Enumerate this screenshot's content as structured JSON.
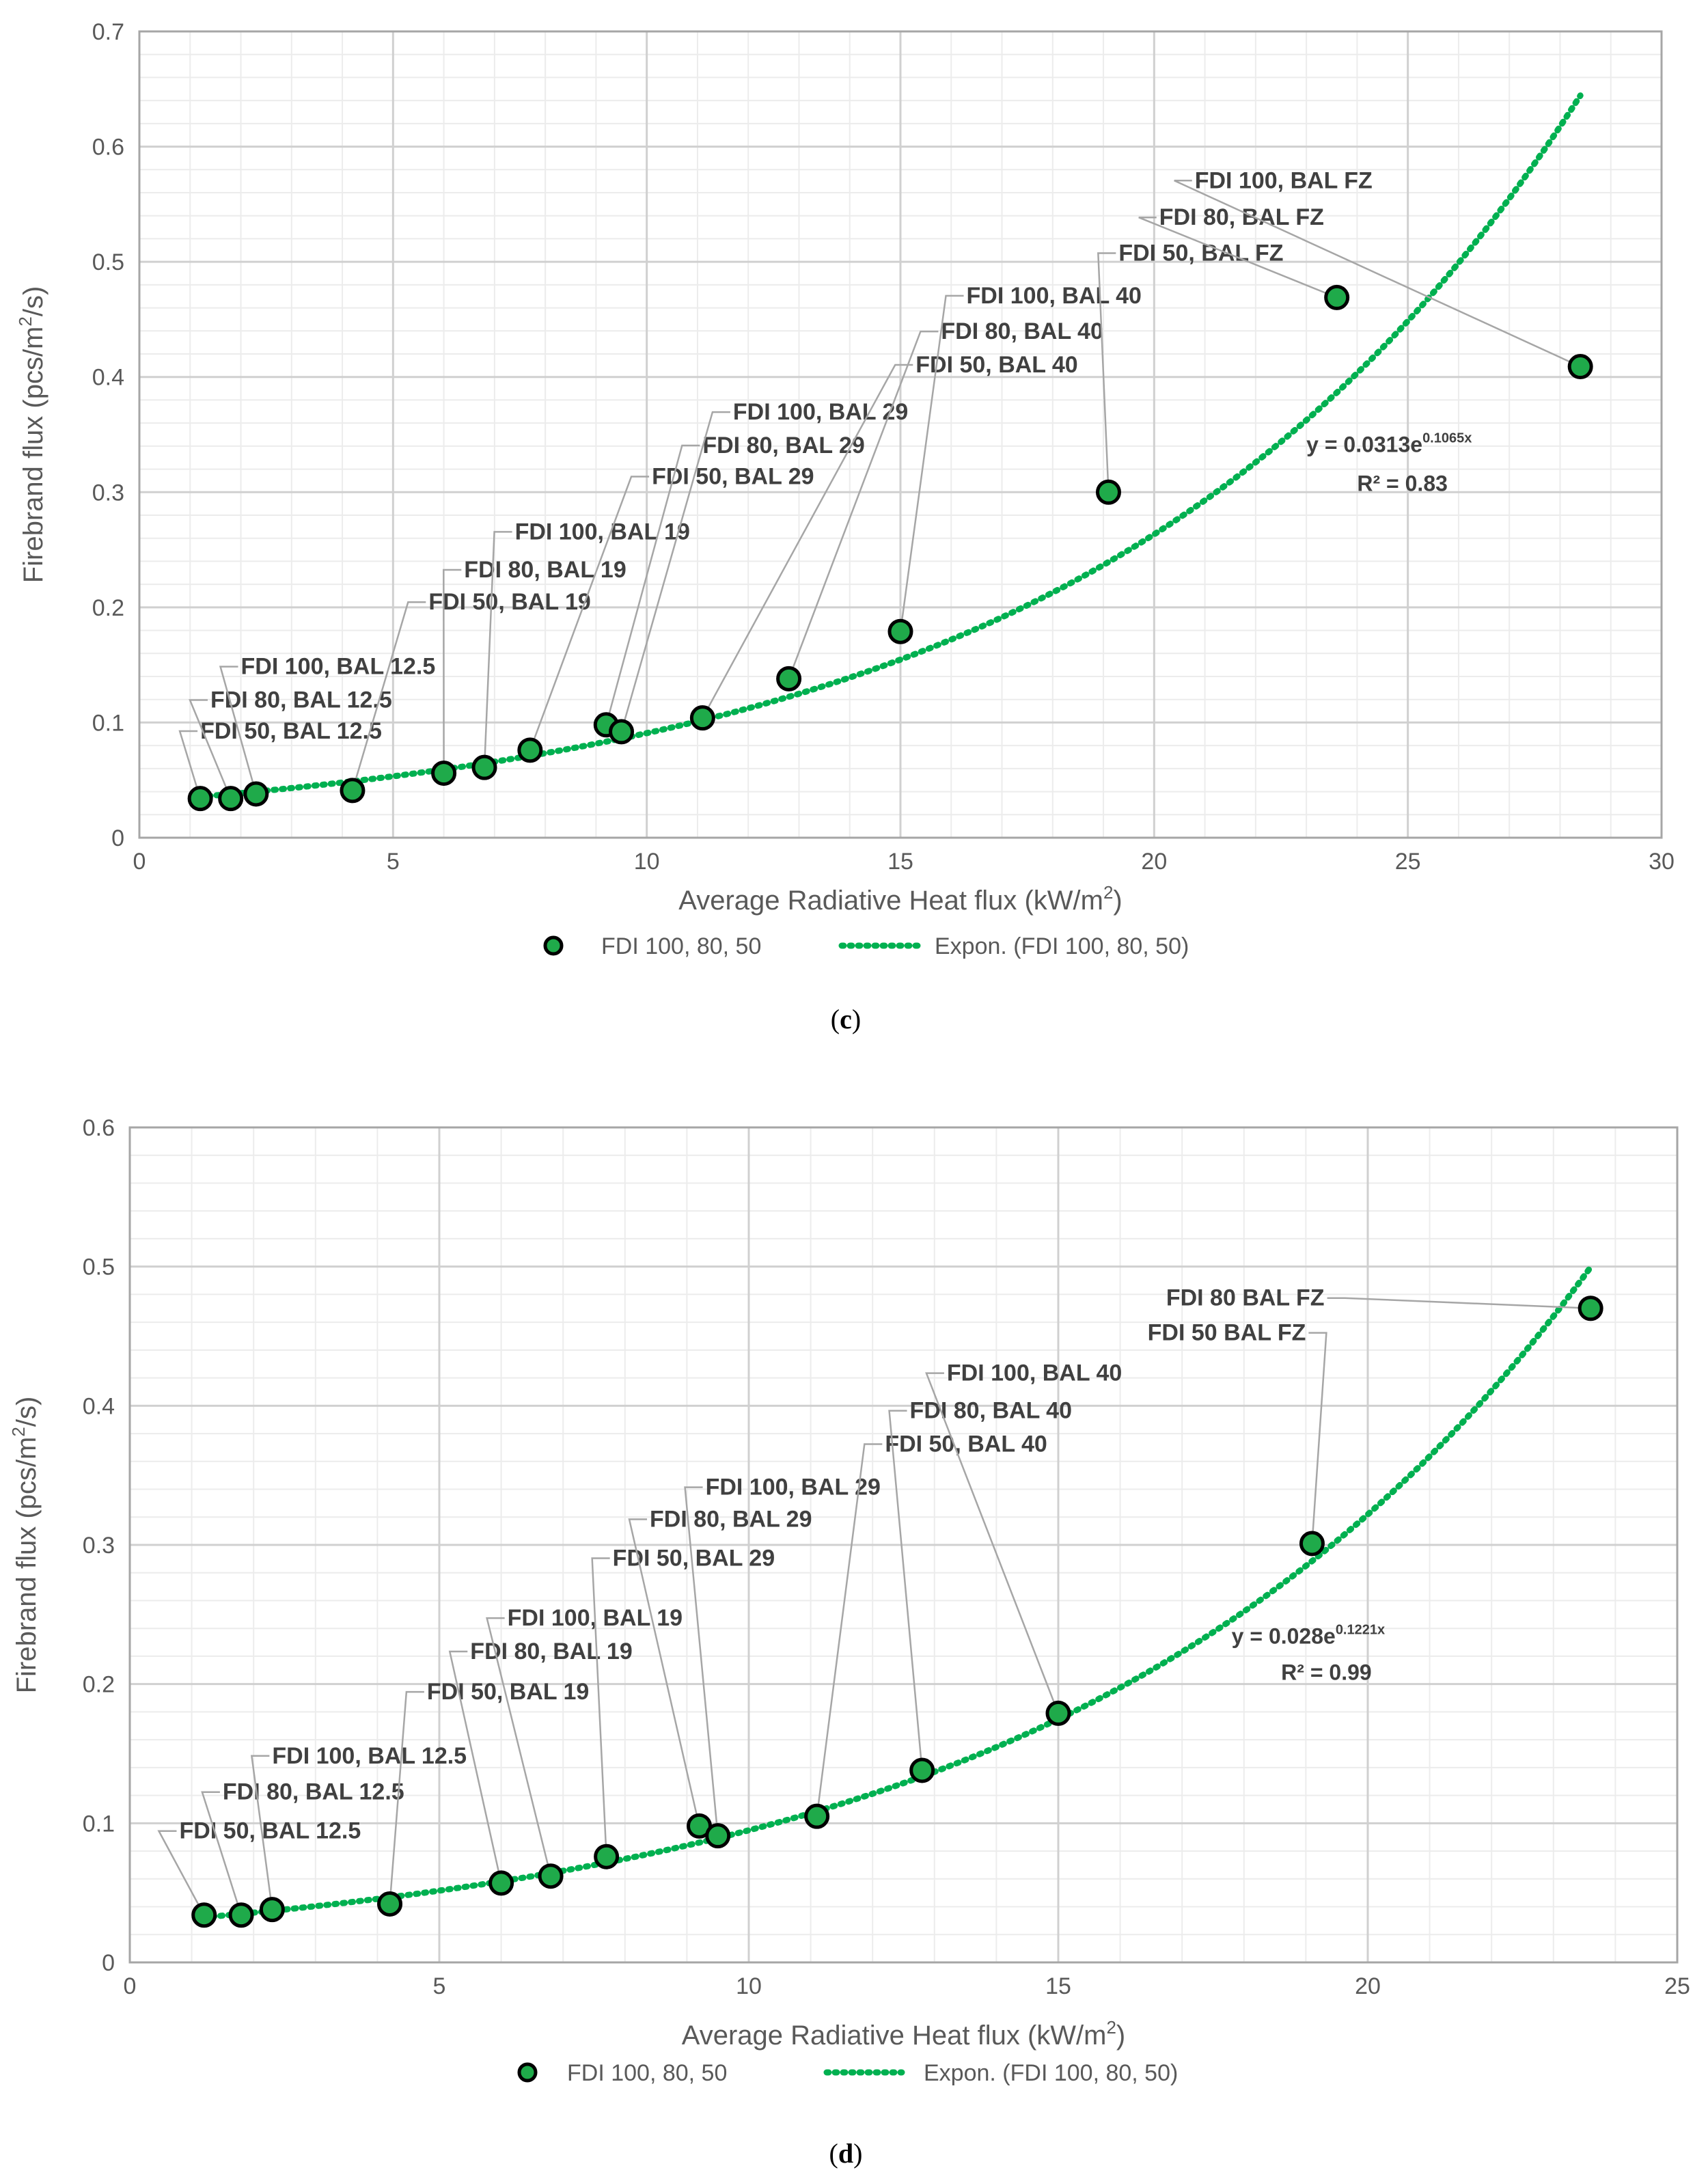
{
  "colors": {
    "marker_fill": "#1faa4a",
    "marker_stroke": "#000000",
    "trend": "#00b050",
    "grid_major": "#d0d0d0",
    "grid_minor": "#ececec",
    "axis": "#a6a6a6",
    "leader": "#a6a6a6"
  },
  "chart_data": [
    {
      "type": "scatter",
      "panel": "c",
      "caption": {
        "open": "(",
        "letter": "c",
        "close": ")"
      },
      "xlabel": {
        "main": "Average Radiative Heat flux (kW/m",
        "sup": "2",
        "tail": ")"
      },
      "ylabel": {
        "main": "Firebrand flux (pcs/m",
        "sup": "2",
        "tail": "/s)"
      },
      "xlim": [
        0,
        30
      ],
      "ylim": [
        0,
        0.7
      ],
      "xticks": [
        0,
        5,
        10,
        15,
        20,
        25,
        30
      ],
      "xtick_labels": [
        "0",
        "5",
        "10",
        "15",
        "20",
        "25",
        "30"
      ],
      "yticks": [
        0,
        0.1,
        0.2,
        0.3,
        0.4,
        0.5,
        0.6,
        0.7
      ],
      "ytick_labels": [
        "0",
        "0.1",
        "0.2",
        "0.3",
        "0.4",
        "0.5",
        "0.6",
        "0.7"
      ],
      "grid": true,
      "legend": {
        "position": "bottom",
        "series_label": "FDI 100, 80, 50",
        "trend_label": "Expon. (FDI 100, 80, 50)"
      },
      "series": [
        {
          "name": "FDI 100, 80, 50",
          "x": [
            1.2,
            1.8,
            2.3,
            4.2,
            6.0,
            6.8,
            7.7,
            9.2,
            9.5,
            11.1,
            12.8,
            15.0,
            19.1,
            23.6,
            28.4
          ],
          "y": [
            0.034,
            0.034,
            0.038,
            0.041,
            0.056,
            0.061,
            0.076,
            0.098,
            0.092,
            0.104,
            0.138,
            0.179,
            0.3,
            0.469,
            0.409
          ],
          "labels": [
            "FDI 50, BAL 12.5",
            "FDI 80, BAL 12.5",
            "FDI 100, BAL 12.5",
            "FDI 50, BAL 19",
            "FDI 80, BAL 19",
            "FDI 100, BAL 19",
            "FDI 50, BAL 29",
            "FDI 80, BAL 29",
            "FDI 100, BAL 29",
            "FDI 50, BAL 40",
            "FDI 80, BAL 40",
            "FDI 100, BAL 40",
            "FDI 50, BAL FZ",
            "FDI 80, BAL FZ",
            "FDI 100, BAL FZ"
          ],
          "label_pos": [
            [
              1.2,
              0.086
            ],
            [
              1.4,
              0.113
            ],
            [
              2.0,
              0.142
            ],
            [
              5.7,
              0.198
            ],
            [
              6.4,
              0.226
            ],
            [
              7.4,
              0.259
            ],
            [
              10.1,
              0.307
            ],
            [
              11.1,
              0.334
            ],
            [
              11.7,
              0.363
            ],
            [
              15.3,
              0.404
            ],
            [
              15.8,
              0.433
            ],
            [
              16.3,
              0.464
            ],
            [
              19.3,
              0.501
            ],
            [
              20.1,
              0.532
            ],
            [
              20.8,
              0.564
            ]
          ],
          "label_anchor": [
            "start",
            "start",
            "start",
            "start",
            "start",
            "start",
            "start",
            "start",
            "start",
            "start",
            "start",
            "start",
            "start",
            "start",
            "start"
          ]
        }
      ],
      "trendline": {
        "type": "exponential",
        "a": 0.0313,
        "b": 0.1065,
        "x_from": 1.2,
        "x_to": 28.4
      },
      "equation": {
        "text": "y = 0.0313e",
        "exponent": "0.1065x",
        "r2": "R² = 0.83",
        "pos": [
          23.0,
          0.335
        ],
        "r2_pos": [
          24.0,
          0.301
        ]
      }
    },
    {
      "type": "scatter",
      "panel": "d",
      "caption": {
        "open": "(",
        "letter": "d",
        "close": ")"
      },
      "xlabel": {
        "main": "Average Radiative Heat flux (kW/m",
        "sup": "2",
        "tail": ")"
      },
      "ylabel": {
        "main": "Firebrand flux (pcs/m",
        "sup": "2",
        "tail": "/s)"
      },
      "xlim": [
        0,
        25
      ],
      "ylim": [
        0,
        0.6
      ],
      "xticks": [
        0,
        5,
        10,
        15,
        20,
        25
      ],
      "xtick_labels": [
        "0",
        "5",
        "10",
        "15",
        "20",
        "25"
      ],
      "yticks": [
        0,
        0.1,
        0.2,
        0.3,
        0.4,
        0.5,
        0.6
      ],
      "ytick_labels": [
        "0",
        "0.1",
        "0.2",
        "0.3",
        "0.4",
        "0.5",
        "0.6"
      ],
      "grid": true,
      "legend": {
        "position": "bottom",
        "series_label": "FDI 100, 80, 50",
        "trend_label": "Expon. (FDI 100, 80, 50)"
      },
      "series": [
        {
          "name": "FDI 100, 80, 50",
          "x": [
            1.2,
            1.8,
            2.3,
            4.2,
            6.0,
            6.8,
            7.7,
            9.2,
            9.5,
            11.1,
            12.8,
            15.0,
            19.1,
            23.6
          ],
          "y": [
            0.034,
            0.034,
            0.038,
            0.042,
            0.057,
            0.062,
            0.076,
            0.098,
            0.091,
            0.105,
            0.138,
            0.179,
            0.301,
            0.47
          ],
          "labels": [
            "FDI 50, BAL 12.5",
            "FDI 80, BAL 12.5",
            "FDI 100, BAL 12.5",
            "FDI 50, BAL 19",
            "FDI 80, BAL 19",
            "FDI 100, BAL 19",
            "FDI 50, BAL 29",
            "FDI 80, BAL 29",
            "FDI 100, BAL 29",
            "FDI 50, BAL 40",
            "FDI 80, BAL 40",
            "FDI 100, BAL 40",
            "FDI 50 BAL FZ",
            "FDI 80 BAL FZ"
          ],
          "label_pos": [
            [
              0.8,
              0.089
            ],
            [
              1.5,
              0.117
            ],
            [
              2.3,
              0.143
            ],
            [
              4.8,
              0.189
            ],
            [
              5.5,
              0.218
            ],
            [
              6.1,
              0.242
            ],
            [
              7.8,
              0.285
            ],
            [
              8.4,
              0.313
            ],
            [
              9.3,
              0.336
            ],
            [
              12.2,
              0.367
            ],
            [
              12.6,
              0.391
            ],
            [
              13.2,
              0.418
            ],
            [
              19.0,
              0.447
            ],
            [
              19.3,
              0.472
            ]
          ],
          "label_anchor": [
            "start",
            "start",
            "start",
            "start",
            "start",
            "start",
            "start",
            "start",
            "start",
            "start",
            "start",
            "start",
            "end",
            "end"
          ]
        }
      ],
      "trendline": {
        "type": "exponential",
        "a": 0.028,
        "b": 0.1221,
        "x_from": 1.2,
        "x_to": 23.6
      },
      "equation": {
        "text": "y = 0.028e",
        "exponent": "0.1221x",
        "r2": "R² = 0.99",
        "pos": [
          17.8,
          0.229
        ],
        "r2_pos": [
          18.6,
          0.203
        ]
      }
    }
  ]
}
